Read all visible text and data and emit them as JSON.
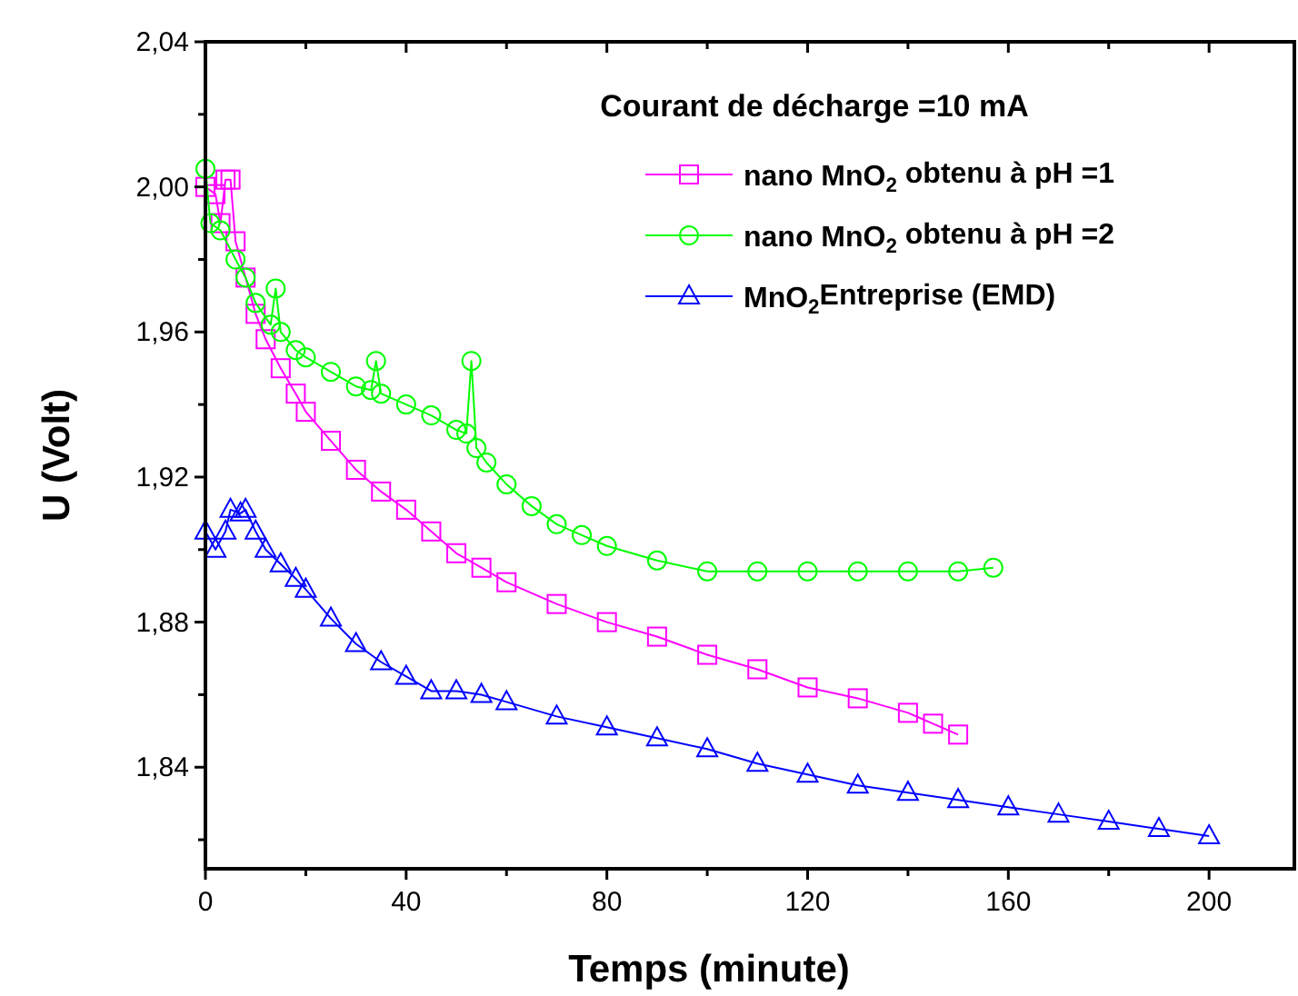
{
  "chart_data": {
    "type": "line",
    "title": "Courant de décharge =10 mA",
    "xlabel": "Temps (minute)",
    "ylabel": "U (Volt)",
    "xlim": [
      0,
      217
    ],
    "ylim": [
      1.812,
      2.04
    ],
    "xticks": [
      0,
      {
        "value": 20,
        "label": null
      },
      40,
      {
        "value": 60,
        "label": null
      },
      80,
      {
        "value": 100,
        "label": null
      },
      120,
      {
        "value": 140,
        "label": null
      },
      160,
      {
        "value": 180,
        "label": null
      },
      200
    ],
    "yticks": [
      {
        "value": 1.82,
        "label": null
      },
      {
        "value": 1.84,
        "label": "1,84"
      },
      {
        "value": 1.86,
        "label": null
      },
      {
        "value": 1.88,
        "label": "1,88"
      },
      {
        "value": 1.9,
        "label": null
      },
      {
        "value": 1.92,
        "label": "1,92"
      },
      {
        "value": 1.94,
        "label": null
      },
      {
        "value": 1.96,
        "label": "1,96"
      },
      {
        "value": 1.98,
        "label": null
      },
      {
        "value": 2.0,
        "label": "2,00"
      },
      {
        "value": 2.02,
        "label": null
      },
      {
        "value": 2.04,
        "label": "2,04"
      }
    ],
    "grid": false,
    "legend": "top right",
    "line_style": "solid",
    "series": [
      {
        "name": "nano MnO$_{2}$ obtenu à pH =1",
        "color": "#ff00ff",
        "marker": "square",
        "x": [
          0,
          2,
          3,
          4,
          5,
          6,
          8,
          10,
          12,
          15,
          18,
          20,
          25,
          30,
          35,
          40,
          45,
          50,
          55,
          60,
          70,
          80,
          90,
          100,
          110,
          120,
          130,
          140,
          145,
          150
        ],
        "values": [
          2.0,
          1.998,
          1.99,
          2.002,
          2.002,
          1.985,
          1.975,
          1.965,
          1.958,
          1.95,
          1.943,
          1.938,
          1.93,
          1.922,
          1.916,
          1.911,
          1.905,
          1.899,
          1.895,
          1.891,
          1.885,
          1.88,
          1.876,
          1.871,
          1.867,
          1.862,
          1.859,
          1.855,
          1.852,
          1.849
        ]
      },
      {
        "name": "nano MnO$_{2}$ obtenu à pH =2",
        "color": "#00ff00",
        "marker": "circle",
        "x": [
          0,
          1,
          3,
          6,
          8,
          10,
          13,
          14,
          15,
          18,
          20,
          25,
          30,
          33,
          34,
          35,
          40,
          45,
          50,
          52,
          53,
          54,
          56,
          60,
          65,
          70,
          75,
          80,
          90,
          100,
          110,
          120,
          130,
          140,
          150,
          157
        ],
        "values": [
          2.005,
          1.99,
          1.988,
          1.98,
          1.975,
          1.968,
          1.962,
          1.972,
          1.96,
          1.955,
          1.953,
          1.949,
          1.945,
          1.944,
          1.952,
          1.943,
          1.94,
          1.937,
          1.933,
          1.932,
          1.952,
          1.928,
          1.924,
          1.918,
          1.912,
          1.907,
          1.904,
          1.901,
          1.897,
          1.894,
          1.894,
          1.894,
          1.894,
          1.894,
          1.894,
          1.895
        ]
      },
      {
        "name": "MnO$_{2}$Entreprise (EMD)",
        "color": "#0000ff",
        "marker": "triangle",
        "x": [
          0,
          2,
          4,
          5,
          7,
          8,
          10,
          12,
          15,
          18,
          20,
          25,
          30,
          35,
          40,
          45,
          50,
          55,
          60,
          70,
          80,
          90,
          100,
          110,
          120,
          130,
          140,
          150,
          160,
          170,
          180,
          190,
          200
        ],
        "values": [
          1.905,
          1.9,
          1.905,
          1.911,
          1.91,
          1.911,
          1.905,
          1.9,
          1.896,
          1.892,
          1.889,
          1.881,
          1.874,
          1.869,
          1.865,
          1.861,
          1.861,
          1.86,
          1.858,
          1.854,
          1.851,
          1.848,
          1.845,
          1.841,
          1.838,
          1.835,
          1.833,
          1.831,
          1.829,
          1.827,
          1.825,
          1.823,
          1.821
        ]
      }
    ]
  }
}
